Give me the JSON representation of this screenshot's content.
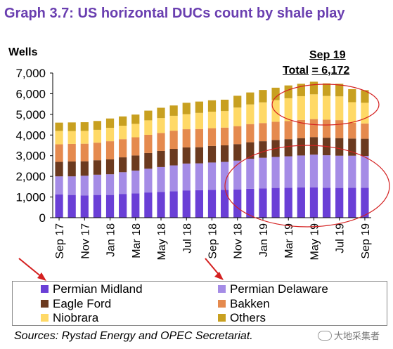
{
  "header": {
    "title": "Graph 3.7: US horizontal DUCs count by shale play",
    "units": "Wells"
  },
  "annotation": {
    "period": "Sep 19",
    "total_label": "Total",
    "total_value": "= 6,172"
  },
  "legend": {
    "items": [
      "Permian Midland",
      "Permian Delaware",
      "Eagle Ford",
      "Bakken",
      "Niobrara",
      "Others"
    ]
  },
  "footer": {
    "source": "Sources: Rystad Energy and OPEC Secretariat.",
    "watermark": "大地采集者"
  },
  "colors": {
    "title": "#6a3fb0",
    "permian_midland": "#6a3fd6",
    "permian_delaware": "#a58ce6",
    "eagle_ford": "#6b3a1f",
    "bakken": "#e58a4e",
    "niobrara": "#ffd966",
    "others": "#c8a020",
    "highlight_ellipse": "#d42020",
    "arrow": "#d42020"
  },
  "chart_data": {
    "type": "bar",
    "stacked": true,
    "categories": [
      "Sep 17",
      "Oct 17",
      "Nov 17",
      "Dec 17",
      "Jan 18",
      "Feb 18",
      "Mar 18",
      "Apr 18",
      "May 18",
      "Jun 18",
      "Jul 18",
      "Aug 18",
      "Sep 18",
      "Oct 18",
      "Nov 18",
      "Dec 18",
      "Jan 19",
      "Feb 19",
      "Mar 19",
      "Apr 19",
      "May 19",
      "Jun 19",
      "Jul 19",
      "Aug 19",
      "Sep 19"
    ],
    "tick_labels": [
      "Sep 17",
      "Nov 17",
      "Jan 18",
      "Mar 18",
      "May 18",
      "Jul 18",
      "Sep 18",
      "Nov 18",
      "Jan 19",
      "Mar 19",
      "May 19",
      "Jul 19",
      "Sep 19"
    ],
    "series": [
      {
        "name": "Permian Midland",
        "values": [
          1130,
          1100,
          1080,
          1100,
          1100,
          1150,
          1180,
          1220,
          1250,
          1280,
          1320,
          1330,
          1350,
          1350,
          1360,
          1400,
          1420,
          1440,
          1450,
          1460,
          1470,
          1450,
          1440,
          1450,
          1450
        ]
      },
      {
        "name": "Permian Delaware",
        "values": [
          870,
          900,
          950,
          980,
          1000,
          1050,
          1100,
          1150,
          1200,
          1250,
          1300,
          1300,
          1320,
          1350,
          1400,
          1450,
          1480,
          1500,
          1520,
          1550,
          1580,
          1570,
          1560,
          1550,
          1540
        ]
      },
      {
        "name": "Eagle Ford",
        "values": [
          700,
          720,
          700,
          700,
          720,
          720,
          730,
          760,
          780,
          800,
          780,
          780,
          800,
          800,
          800,
          800,
          800,
          820,
          830,
          840,
          850,
          850,
          850,
          830,
          830
        ]
      },
      {
        "name": "Bakken",
        "values": [
          850,
          850,
          850,
          850,
          880,
          880,
          880,
          880,
          870,
          880,
          880,
          880,
          860,
          860,
          870,
          880,
          880,
          880,
          880,
          880,
          870,
          870,
          870,
          760,
          740
        ]
      },
      {
        "name": "Niobrara",
        "values": [
          650,
          620,
          620,
          620,
          650,
          650,
          650,
          700,
          720,
          720,
          730,
          780,
          800,
          800,
          900,
          950,
          1000,
          1050,
          1100,
          1150,
          1200,
          1150,
          1150,
          1000,
          1000
        ]
      },
      {
        "name": "Others",
        "values": [
          400,
          420,
          420,
          430,
          450,
          450,
          450,
          470,
          500,
          500,
          550,
          550,
          550,
          550,
          570,
          580,
          600,
          600,
          620,
          600,
          610,
          610,
          610,
          630,
          612
        ]
      }
    ],
    "ylabel": "Wells",
    "ylim": [
      0,
      7000
    ],
    "yticks": [
      0,
      1000,
      2000,
      3000,
      4000,
      5000,
      6000,
      7000
    ],
    "ytick_labels": [
      "0",
      "1,000",
      "2,000",
      "3,000",
      "4,000",
      "5,000",
      "6,000",
      "7,000"
    ],
    "grid": false,
    "legend_position": "bottom"
  }
}
